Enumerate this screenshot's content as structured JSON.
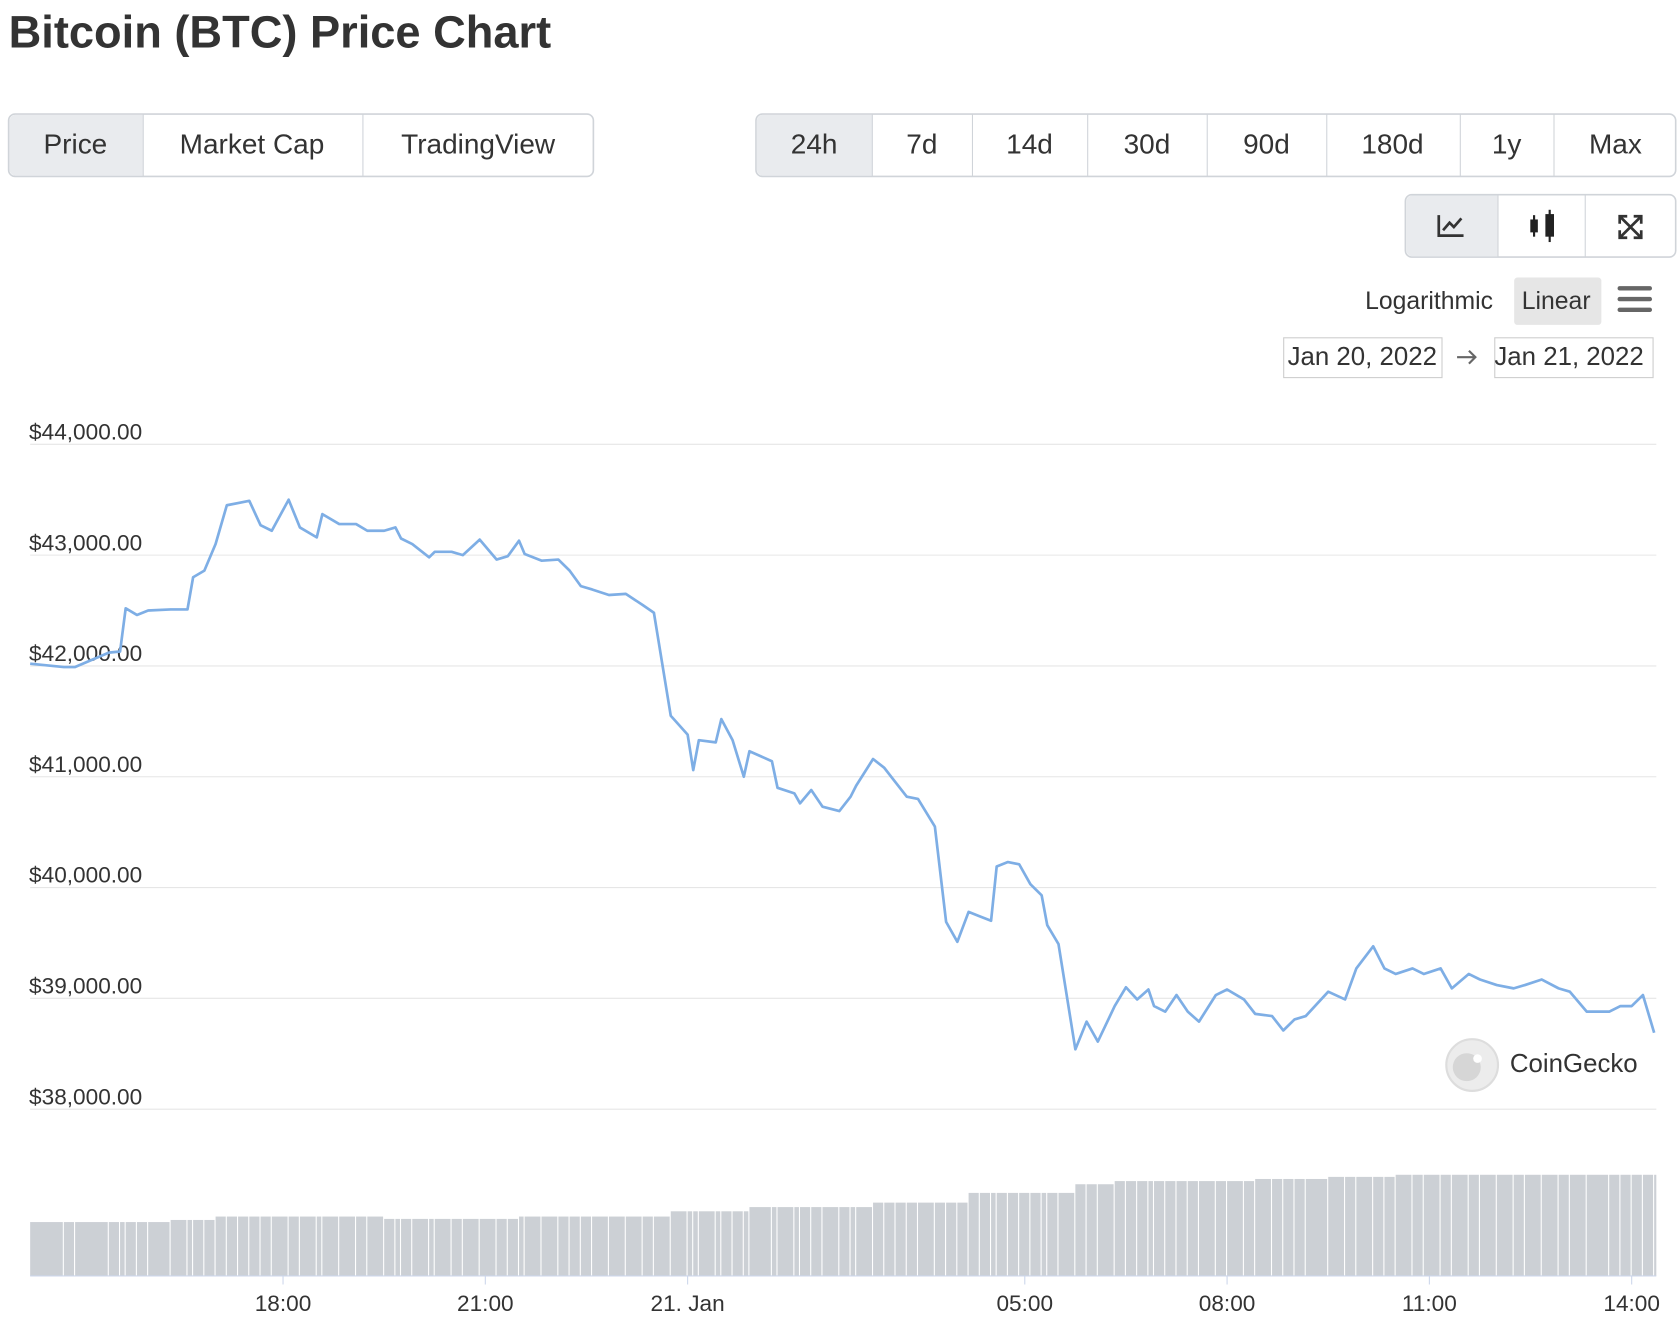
{
  "header": {
    "title": "Bitcoin (BTC) Price Chart"
  },
  "tabs": [
    "Price",
    "Market Cap",
    "TradingView"
  ],
  "ranges": [
    "24h",
    "7d",
    "14d",
    "30d",
    "90d",
    "180d",
    "1y",
    "Max"
  ],
  "scale_options": [
    "Logarithmic",
    "Linear"
  ],
  "date_range": {
    "from": "Jan 20, 2022",
    "to": "Jan 21, 2022"
  },
  "watermark": "CoinGecko",
  "chart_data": {
    "type": "line",
    "color": "#7eaee5",
    "volume_color": "#ccd0d5",
    "grid": true,
    "xlim": [
      "2022-01-20 14:15",
      "2022-01-21 14:20"
    ],
    "ylim": [
      38000,
      44000
    ],
    "yticks": [
      {
        "value": 38000,
        "label": "$38,000.00"
      },
      {
        "value": 39000,
        "label": "$39,000.00"
      },
      {
        "value": 40000,
        "label": "$40,000.00"
      },
      {
        "value": 41000,
        "label": "$41,000.00"
      },
      {
        "value": 42000,
        "label": "$42,000.00"
      },
      {
        "value": 43000,
        "label": "$43,000.00"
      },
      {
        "value": 44000,
        "label": "$44,000.00"
      }
    ],
    "xticks": [
      {
        "value": "2022-01-20 18:00",
        "label": "18:00"
      },
      {
        "value": "2022-01-20 21:00",
        "label": "21:00"
      },
      {
        "value": "2022-01-21 00:00",
        "label": "21. Jan"
      },
      {
        "value": "2022-01-21 05:00",
        "label": "05:00"
      },
      {
        "value": "2022-01-21 08:00",
        "label": "08:00"
      },
      {
        "value": "2022-01-21 11:00",
        "label": "11:00"
      },
      {
        "value": "2022-01-21 14:00",
        "label": "14:00"
      }
    ],
    "x": [
      "2022-01-20 14:15",
      "2022-01-20 14:45",
      "2022-01-20 14:55",
      "2022-01-20 15:25",
      "2022-01-20 15:35",
      "2022-01-20 15:40",
      "2022-01-20 15:50",
      "2022-01-20 16:00",
      "2022-01-20 16:20",
      "2022-01-20 16:35",
      "2022-01-20 16:40",
      "2022-01-20 16:50",
      "2022-01-20 17:00",
      "2022-01-20 17:10",
      "2022-01-20 17:20",
      "2022-01-20 17:30",
      "2022-01-20 17:40",
      "2022-01-20 17:50",
      "2022-01-20 18:05",
      "2022-01-20 18:15",
      "2022-01-20 18:30",
      "2022-01-20 18:35",
      "2022-01-20 18:50",
      "2022-01-20 19:05",
      "2022-01-20 19:15",
      "2022-01-20 19:30",
      "2022-01-20 19:40",
      "2022-01-20 19:45",
      "2022-01-20 19:55",
      "2022-01-20 20:10",
      "2022-01-20 20:15",
      "2022-01-20 20:30",
      "2022-01-20 20:40",
      "2022-01-20 20:55",
      "2022-01-20 21:10",
      "2022-01-20 21:20",
      "2022-01-20 21:30",
      "2022-01-20 21:35",
      "2022-01-20 21:50",
      "2022-01-20 22:05",
      "2022-01-20 22:15",
      "2022-01-20 22:25",
      "2022-01-20 22:35",
      "2022-01-20 22:50",
      "2022-01-20 23:05",
      "2022-01-20 23:20",
      "2022-01-20 23:30",
      "2022-01-20 23:45",
      "2022-01-21 00:00",
      "2022-01-21 00:05",
      "2022-01-21 00:10",
      "2022-01-21 00:25",
      "2022-01-21 00:30",
      "2022-01-21 00:40",
      "2022-01-21 00:50",
      "2022-01-21 00:55",
      "2022-01-21 01:15",
      "2022-01-21 01:20",
      "2022-01-21 01:35",
      "2022-01-21 01:40",
      "2022-01-21 01:50",
      "2022-01-21 02:00",
      "2022-01-21 02:15",
      "2022-01-21 02:25",
      "2022-01-21 02:30",
      "2022-01-21 02:45",
      "2022-01-21 02:55",
      "2022-01-21 03:05",
      "2022-01-21 03:15",
      "2022-01-21 03:25",
      "2022-01-21 03:40",
      "2022-01-21 03:50",
      "2022-01-21 04:00",
      "2022-01-21 04:10",
      "2022-01-21 04:20",
      "2022-01-21 04:30",
      "2022-01-21 04:35",
      "2022-01-21 04:45",
      "2022-01-21 04:55",
      "2022-01-21 05:05",
      "2022-01-21 05:15",
      "2022-01-21 05:20",
      "2022-01-21 05:30",
      "2022-01-21 05:45",
      "2022-01-21 05:55",
      "2022-01-21 06:05",
      "2022-01-21 06:20",
      "2022-01-21 06:30",
      "2022-01-21 06:40",
      "2022-01-21 06:50",
      "2022-01-21 06:55",
      "2022-01-21 07:05",
      "2022-01-21 07:15",
      "2022-01-21 07:25",
      "2022-01-21 07:35",
      "2022-01-21 07:50",
      "2022-01-21 08:00",
      "2022-01-21 08:15",
      "2022-01-21 08:25",
      "2022-01-21 08:40",
      "2022-01-21 08:50",
      "2022-01-21 09:00",
      "2022-01-21 09:10",
      "2022-01-21 09:30",
      "2022-01-21 09:45",
      "2022-01-21 09:55",
      "2022-01-21 10:10",
      "2022-01-21 10:20",
      "2022-01-21 10:30",
      "2022-01-21 10:45",
      "2022-01-21 10:55",
      "2022-01-21 11:10",
      "2022-01-21 11:20",
      "2022-01-21 11:35",
      "2022-01-21 11:45",
      "2022-01-21 12:00",
      "2022-01-21 12:15",
      "2022-01-21 12:25",
      "2022-01-21 12:40",
      "2022-01-21 12:55",
      "2022-01-21 13:05",
      "2022-01-21 13:20",
      "2022-01-21 13:40",
      "2022-01-21 13:50",
      "2022-01-21 14:00",
      "2022-01-21 14:10",
      "2022-01-21 14:20"
    ],
    "values": [
      42020,
      41990,
      41990,
      42120,
      42130,
      42520,
      42460,
      42500,
      42510,
      42510,
      42800,
      42860,
      43100,
      43450,
      43470,
      43490,
      43270,
      43220,
      43500,
      43250,
      43160,
      43370,
      43280,
      43280,
      43220,
      43220,
      43250,
      43150,
      43100,
      42980,
      43030,
      43030,
      43000,
      43140,
      42960,
      42990,
      43130,
      43010,
      42950,
      42960,
      42860,
      42720,
      42690,
      42640,
      42650,
      42550,
      42480,
      41550,
      41380,
      41060,
      41330,
      41310,
      41520,
      41330,
      41000,
      41230,
      41140,
      40900,
      40850,
      40760,
      40880,
      40730,
      40690,
      40820,
      40920,
      41160,
      41080,
      40950,
      40820,
      40800,
      40550,
      39690,
      39510,
      39780,
      39740,
      39700,
      40190,
      40230,
      40210,
      40030,
      39930,
      39660,
      39490,
      38540,
      38790,
      38610,
      38930,
      39100,
      38990,
      39080,
      38930,
      38880,
      39030,
      38880,
      38790,
      39030,
      39080,
      38990,
      38860,
      38840,
      38710,
      38810,
      38840,
      39060,
      38990,
      39270,
      39470,
      39270,
      39220,
      39270,
      39220,
      39270,
      39090,
      39220,
      39170,
      39120,
      39090,
      39120,
      39170,
      39090,
      39060,
      38880,
      38880,
      38930,
      38930,
      39030,
      38690
    ],
    "volume": [
      20.5,
      20.5,
      20.5,
      20.5,
      20.5,
      20.5,
      20.5,
      20.5,
      21.3,
      21.3,
      21.3,
      21.3,
      22.6,
      22.6,
      22.6,
      22.6,
      22.6,
      22.6,
      22.6,
      22.6,
      22.6,
      22.6,
      22.6,
      22.6,
      22.6,
      21.7,
      21.7,
      21.7,
      21.7,
      21.7,
      21.7,
      21.7,
      21.7,
      21.7,
      21.7,
      21.7,
      22.6,
      22.6,
      22.6,
      22.6,
      22.6,
      22.6,
      22.6,
      22.6,
      22.6,
      22.6,
      22.6,
      24.6,
      24.6,
      24.6,
      24.6,
      24.6,
      24.6,
      24.6,
      24.6,
      26.2,
      26.2,
      26.2,
      26.2,
      26.2,
      26.2,
      26.2,
      26.2,
      26.2,
      26.2,
      27.9,
      27.9,
      27.9,
      27.9,
      27.9,
      27.9,
      27.9,
      27.9,
      31.6,
      31.6,
      31.6,
      31.6,
      31.6,
      31.6,
      31.6,
      31.6,
      31.6,
      31.6,
      34.9,
      34.9,
      34.9,
      36.1,
      36.1,
      36.1,
      36.1,
      36.1,
      36.1,
      36.1,
      36.1,
      36.1,
      36.1,
      36.1,
      36.1,
      36.9,
      36.9,
      36.9,
      36.9,
      36.9,
      37.7,
      37.7,
      37.7,
      37.7,
      37.7,
      38.5,
      38.5,
      38.5,
      38.5,
      38.5,
      38.5,
      38.5,
      38.5,
      38.5,
      38.5,
      38.5,
      38.5,
      38.5,
      38.5,
      38.5,
      38.5,
      38.5,
      38.5,
      38.5
    ]
  }
}
